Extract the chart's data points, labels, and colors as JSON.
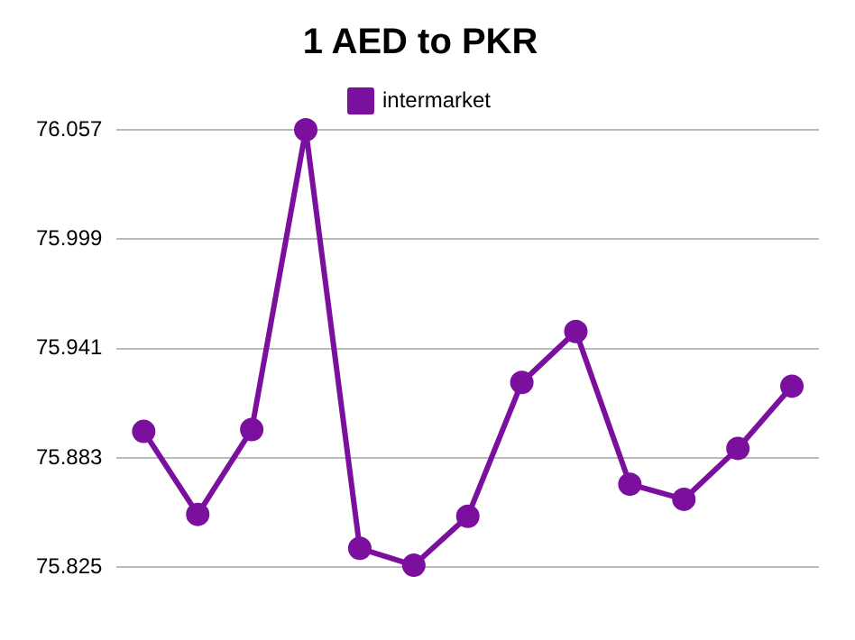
{
  "chart_data": {
    "type": "line",
    "title": "1 AED to PKR",
    "categories": [
      null,
      null,
      null,
      null,
      null,
      null,
      null,
      null,
      null,
      null,
      null,
      null,
      null
    ],
    "series": [
      {
        "name": "intermarket",
        "color": "#7b0f9e",
        "values": [
          75.897,
          75.853,
          75.898,
          76.057,
          75.835,
          75.826,
          75.852,
          75.923,
          75.95,
          75.869,
          75.861,
          75.888,
          75.921
        ]
      }
    ],
    "ylim": [
      75.825,
      76.057
    ],
    "yticks": [
      75.825,
      75.883,
      75.941,
      75.999,
      76.057
    ],
    "grid": "y",
    "legend": "top",
    "marker": "circle",
    "line_style": "solid"
  }
}
